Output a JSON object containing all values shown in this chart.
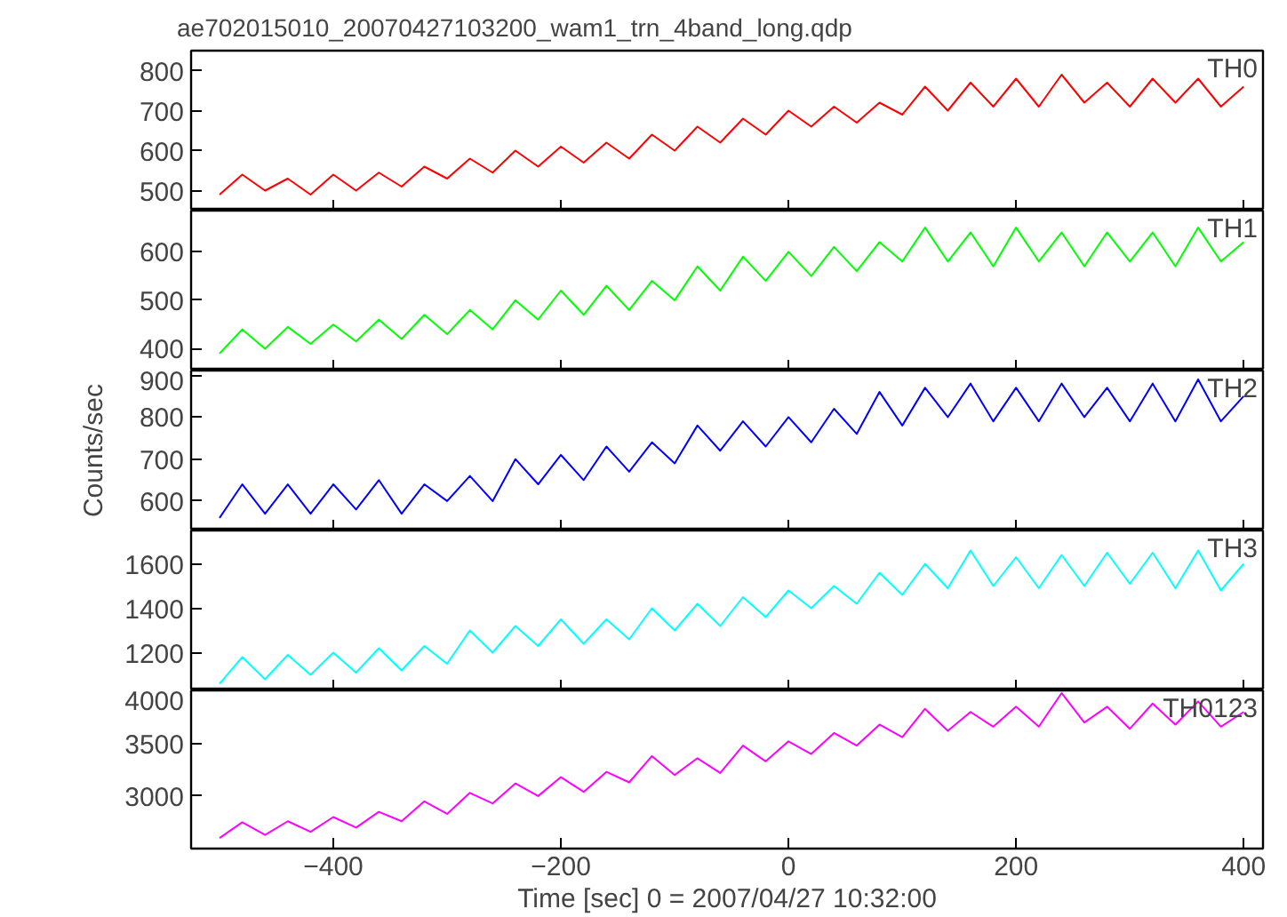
{
  "chart_data": [
    {
      "type": "line",
      "title": "ae702015010_20070427103200_wam1_trn_4band_long.qdp",
      "annotations": [
        "TH0"
      ],
      "tick_labels": "y",
      "grid": false,
      "xlim": [
        -525,
        417
      ],
      "xticks": [
        -400,
        -200,
        0,
        200,
        400
      ],
      "ylim": [
        450,
        850
      ],
      "yticks": [
        500,
        600,
        700,
        800
      ],
      "x": [
        -500,
        -480,
        -460,
        -440,
        -420,
        -400,
        -380,
        -360,
        -340,
        -320,
        -300,
        -280,
        -260,
        -240,
        -220,
        -200,
        -180,
        -160,
        -140,
        -120,
        -100,
        -80,
        -60,
        -40,
        -20,
        0,
        20,
        40,
        60,
        80,
        100,
        120,
        140,
        160,
        180,
        200,
        220,
        240,
        260,
        280,
        300,
        320,
        340,
        360,
        380,
        400
      ],
      "series": [
        {
          "color": "#ff0000",
          "values": [
            490,
            540,
            500,
            530,
            490,
            540,
            500,
            545,
            510,
            560,
            530,
            580,
            545,
            600,
            560,
            610,
            570,
            620,
            580,
            640,
            600,
            660,
            620,
            680,
            640,
            700,
            660,
            710,
            670,
            720,
            690,
            760,
            700,
            770,
            710,
            780,
            710,
            790,
            720,
            770,
            710,
            780,
            720,
            780,
            710,
            760
          ]
        }
      ]
    },
    {
      "type": "line",
      "annotations": [
        "TH1"
      ],
      "tick_labels": "y",
      "grid": false,
      "xlim": [
        -525,
        417
      ],
      "xticks": [
        -400,
        -200,
        0,
        200,
        400
      ],
      "ylim": [
        355,
        685
      ],
      "yticks": [
        400,
        500,
        600
      ],
      "x": [
        -500,
        -480,
        -460,
        -440,
        -420,
        -400,
        -380,
        -360,
        -340,
        -320,
        -300,
        -280,
        -260,
        -240,
        -220,
        -200,
        -180,
        -160,
        -140,
        -120,
        -100,
        -80,
        -60,
        -40,
        -20,
        0,
        20,
        40,
        60,
        80,
        100,
        120,
        140,
        160,
        180,
        200,
        220,
        240,
        260,
        280,
        300,
        320,
        340,
        360,
        380,
        400
      ],
      "series": [
        {
          "color": "#00ff00",
          "values": [
            390,
            440,
            400,
            445,
            410,
            450,
            415,
            460,
            420,
            470,
            430,
            480,
            440,
            500,
            460,
            520,
            470,
            530,
            480,
            540,
            500,
            570,
            520,
            590,
            540,
            600,
            550,
            610,
            560,
            620,
            580,
            650,
            580,
            640,
            570,
            650,
            580,
            640,
            570,
            640,
            580,
            640,
            570,
            650,
            580,
            620
          ]
        }
      ]
    },
    {
      "type": "line",
      "ylabel": "Counts/sec",
      "annotations": [
        "TH2"
      ],
      "tick_labels": "y",
      "grid": false,
      "xlim": [
        -525,
        417
      ],
      "xticks": [
        -400,
        -200,
        0,
        200,
        400
      ],
      "ylim": [
        530,
        911
      ],
      "yticks": [
        600,
        700,
        800,
        900
      ],
      "x": [
        -500,
        -480,
        -460,
        -440,
        -420,
        -400,
        -380,
        -360,
        -340,
        -320,
        -300,
        -280,
        -260,
        -240,
        -220,
        -200,
        -180,
        -160,
        -140,
        -120,
        -100,
        -80,
        -60,
        -40,
        -20,
        0,
        20,
        40,
        60,
        80,
        100,
        120,
        140,
        160,
        180,
        200,
        220,
        240,
        260,
        280,
        300,
        320,
        340,
        360,
        380,
        400
      ],
      "series": [
        {
          "color": "#0000ff",
          "values": [
            560,
            640,
            570,
            640,
            570,
            640,
            580,
            650,
            570,
            640,
            600,
            660,
            600,
            700,
            640,
            710,
            650,
            730,
            670,
            740,
            690,
            780,
            720,
            790,
            730,
            800,
            740,
            820,
            760,
            860,
            780,
            870,
            800,
            880,
            790,
            870,
            790,
            880,
            800,
            870,
            790,
            880,
            790,
            890,
            790,
            850
          ]
        }
      ]
    },
    {
      "type": "line",
      "annotations": [
        "TH3"
      ],
      "tick_labels": "y",
      "grid": false,
      "xlim": [
        -525,
        417
      ],
      "xticks": [
        -400,
        -200,
        0,
        200,
        400
      ],
      "ylim": [
        1030,
        1750
      ],
      "yticks": [
        1200,
        1400,
        1600
      ],
      "x": [
        -500,
        -480,
        -460,
        -440,
        -420,
        -400,
        -380,
        -360,
        -340,
        -320,
        -300,
        -280,
        -260,
        -240,
        -220,
        -200,
        -180,
        -160,
        -140,
        -120,
        -100,
        -80,
        -60,
        -40,
        -20,
        0,
        20,
        40,
        60,
        80,
        100,
        120,
        140,
        160,
        180,
        200,
        220,
        240,
        260,
        280,
        300,
        320,
        340,
        360,
        380,
        400
      ],
      "series": [
        {
          "color": "#00ffff",
          "values": [
            1060,
            1180,
            1080,
            1190,
            1100,
            1200,
            1110,
            1220,
            1120,
            1230,
            1150,
            1300,
            1200,
            1320,
            1230,
            1350,
            1240,
            1350,
            1260,
            1400,
            1300,
            1420,
            1320,
            1450,
            1360,
            1480,
            1400,
            1500,
            1420,
            1560,
            1460,
            1600,
            1490,
            1660,
            1500,
            1630,
            1490,
            1640,
            1500,
            1650,
            1510,
            1650,
            1490,
            1660,
            1480,
            1600
          ]
        }
      ]
    },
    {
      "type": "line",
      "xlabel": "Time [sec] 0 = 2007/04/27 10:32:00",
      "annotations": [
        "TH0123"
      ],
      "grid": false,
      "xlim": [
        -525,
        417
      ],
      "xticks": [
        -400,
        -200,
        0,
        200,
        400
      ],
      "ylim": [
        2500,
        4005
      ],
      "yticks": [
        3000,
        3500,
        4000
      ],
      "x": [
        -500,
        -480,
        -460,
        -440,
        -420,
        -400,
        -380,
        -360,
        -340,
        -320,
        -300,
        -280,
        -260,
        -240,
        -220,
        -200,
        -180,
        -160,
        -140,
        -120,
        -100,
        -80,
        -60,
        -40,
        -20,
        0,
        20,
        40,
        60,
        80,
        100,
        120,
        140,
        160,
        180,
        200,
        220,
        240,
        260,
        280,
        300,
        320,
        340,
        360,
        380,
        400
      ],
      "series": [
        {
          "color": "#ff00ff",
          "values": [
            2600,
            2750,
            2630,
            2760,
            2660,
            2800,
            2700,
            2850,
            2760,
            2950,
            2830,
            3030,
            2930,
            3120,
            3000,
            3180,
            3040,
            3230,
            3130,
            3380,
            3200,
            3360,
            3220,
            3480,
            3330,
            3520,
            3400,
            3600,
            3480,
            3680,
            3560,
            3830,
            3620,
            3800,
            3660,
            3850,
            3660,
            3980,
            3700,
            3850,
            3640,
            3880,
            3680,
            3900,
            3660,
            3800
          ]
        }
      ]
    }
  ]
}
